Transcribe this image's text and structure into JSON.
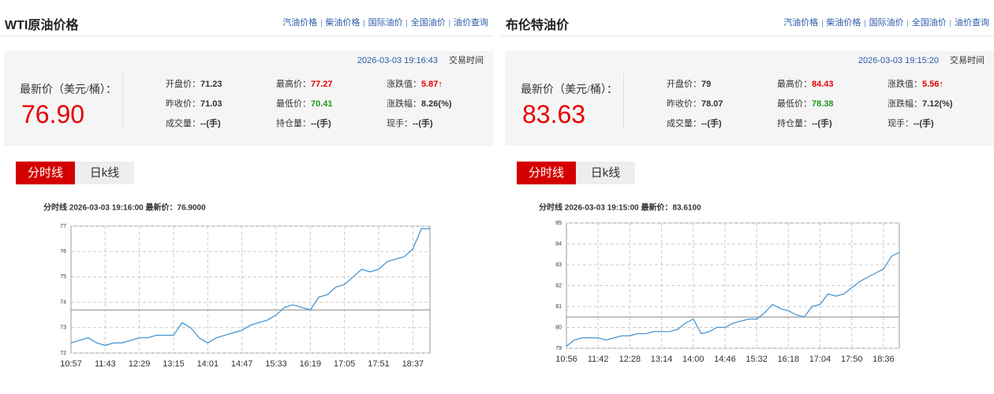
{
  "panels": [
    {
      "title": "WTI原油价格",
      "links": [
        "汽油价格",
        "柴油价格",
        "国际油价",
        "全国油价",
        "油价查询"
      ],
      "separator": "|",
      "update_time": "2026-03-03 19:16:43",
      "time_label": "交易时间",
      "price_label": "最新价（美元/桶）：",
      "price": "76.90",
      "stats": [
        {
          "label": "开盘价：",
          "value": 71.23
        },
        {
          "label": "最高价：",
          "value": 77.27,
          "color": "#e60000"
        },
        {
          "label": "涨跌值：",
          "value": "5.87↑",
          "color": "#e60000"
        },
        {
          "label": "昨收价：",
          "value": 71.03
        },
        {
          "label": "最低价：",
          "value": 70.41,
          "color": "#1a9a1a"
        },
        {
          "label": "涨跌幅：",
          "value": "8.26(%)"
        },
        {
          "label": "成交量：",
          "value": "--(手)"
        },
        {
          "label": "持仓量：",
          "value": "--(手)"
        },
        {
          "label": "现手：",
          "value": "--(手)"
        }
      ],
      "tabs": [
        "分时线",
        "日k线"
      ],
      "chart": {
        "type": "line",
        "title": "分时线  2026-03-03 19:16:00  最新价：76.9000",
        "categories": [
          "10:57",
          null,
          null,
          null,
          "11:43",
          null,
          null,
          null,
          "12:29",
          null,
          null,
          null,
          "13:15",
          null,
          null,
          null,
          "14:01",
          null,
          null,
          null,
          "14:47",
          null,
          null,
          null,
          "15:33",
          null,
          null,
          null,
          "16:19",
          null,
          null,
          null,
          "17:05",
          null,
          null,
          null,
          "17:51",
          null,
          null,
          null,
          "18:37",
          null,
          null
        ],
        "values": [
          72.4,
          72.5,
          72.6,
          72.4,
          72.3,
          72.4,
          72.4,
          72.5,
          72.6,
          72.6,
          72.7,
          72.7,
          72.7,
          73.2,
          73.0,
          72.6,
          72.4,
          72.6,
          72.7,
          72.8,
          72.9,
          73.1,
          73.2,
          73.3,
          73.5,
          73.8,
          73.9,
          73.8,
          73.7,
          74.2,
          74.3,
          74.6,
          74.7,
          75.0,
          75.3,
          75.2,
          75.3,
          75.6,
          75.7,
          75.8,
          76.1,
          76.9,
          76.9
        ],
        "ylim": [
          72,
          77
        ],
        "yticks": [
          72,
          73,
          74,
          75,
          76,
          77
        ],
        "color": "#3a8fd0",
        "reference_line": 73.7,
        "grid": true
      }
    },
    {
      "title": "布伦特油价",
      "links": [
        "汽油价格",
        "柴油价格",
        "国际油价",
        "全国油价",
        "油价查询"
      ],
      "separator": "|",
      "update_time": "2026-03-03 19:15:20",
      "time_label": "交易时间",
      "price_label": "最新价（美元/桶）：",
      "price": "83.63",
      "stats": [
        {
          "label": "开盘价：",
          "value": 79
        },
        {
          "label": "最高价：",
          "value": 84.43,
          "color": "#e60000"
        },
        {
          "label": "涨跌值：",
          "value": "5.56↑",
          "color": "#e60000"
        },
        {
          "label": "昨收价：",
          "value": 78.07
        },
        {
          "label": "最低价：",
          "value": 78.38,
          "color": "#1a9a1a"
        },
        {
          "label": "涨跌幅：",
          "value": "7.12(%)"
        },
        {
          "label": "成交量：",
          "value": "--(手)"
        },
        {
          "label": "持仓量：",
          "value": "--(手)"
        },
        {
          "label": "现手：",
          "value": "--(手)"
        }
      ],
      "tabs": [
        "分时线",
        "日k线"
      ],
      "chart": {
        "type": "line",
        "title": "分时线  2026-03-03 19:15:00  最新价：83.6100",
        "categories": [
          "10:56",
          null,
          null,
          null,
          "11:42",
          null,
          null,
          null,
          "12:28",
          null,
          null,
          null,
          "13:14",
          null,
          null,
          null,
          "14:00",
          null,
          null,
          null,
          "14:46",
          null,
          null,
          null,
          "15:32",
          null,
          null,
          null,
          "16:18",
          null,
          null,
          null,
          "17:04",
          null,
          null,
          null,
          "17:50",
          null,
          null,
          null,
          "18:36",
          null,
          null
        ],
        "values": [
          79.1,
          79.4,
          79.5,
          79.5,
          79.5,
          79.4,
          79.5,
          79.6,
          79.6,
          79.7,
          79.7,
          79.8,
          79.8,
          79.8,
          79.9,
          80.2,
          80.4,
          79.7,
          79.8,
          80.0,
          80.0,
          80.2,
          80.3,
          80.4,
          80.4,
          80.7,
          81.1,
          80.9,
          80.8,
          80.6,
          80.5,
          81.0,
          81.1,
          81.6,
          81.5,
          81.6,
          81.9,
          82.2,
          82.4,
          82.6,
          82.8,
          83.4,
          83.6
        ],
        "ylim": [
          79,
          85
        ],
        "yticks": [
          79,
          80,
          81,
          82,
          83,
          84,
          85
        ],
        "color": "#3a8fd0",
        "reference_line": 80.5,
        "grid": true
      }
    }
  ]
}
